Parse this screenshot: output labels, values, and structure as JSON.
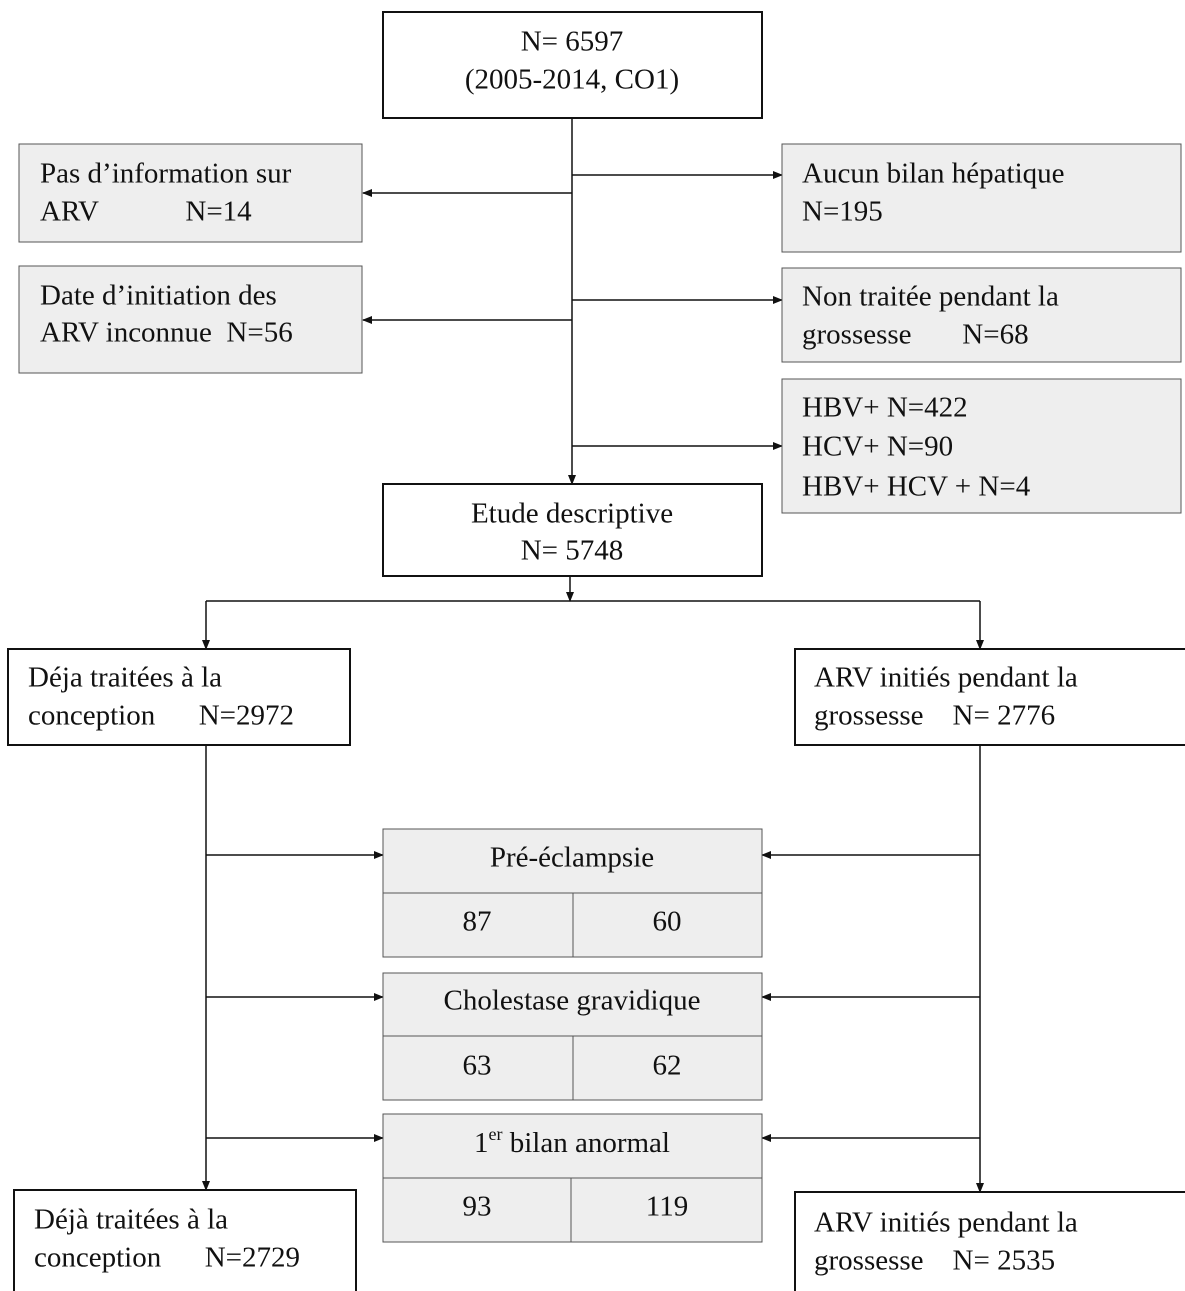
{
  "boxes": {
    "start": {
      "lines": [
        "N= 6597",
        "(2005-2014, CO1)"
      ]
    },
    "excl_left_1": {
      "lines": [
        "Pas d’information sur",
        "ARV            N=14"
      ]
    },
    "excl_left_2": {
      "lines": [
        "Date d’initiation des",
        "ARV inconnue  N=56"
      ]
    },
    "excl_right_1": {
      "lines": [
        "Aucun bilan hépatique",
        "N=195"
      ]
    },
    "excl_right_2": {
      "lines": [
        "Non traitée pendant la",
        "grossesse       N=68"
      ]
    },
    "excl_right_3": {
      "lines": [
        "HBV+ N=422",
        "HCV+ N=90",
        "HBV+ HCV + N=4"
      ]
    },
    "descriptive": {
      "lines": [
        "Etude descriptive",
        "N= 5748"
      ]
    },
    "treated": {
      "lines": [
        "Déja traitées à la",
        "conception      N=2972"
      ]
    },
    "initiated": {
      "lines": [
        "ARV initiés pendant la",
        "grossesse    N= 2776"
      ]
    },
    "treated_final": {
      "lines": [
        "Déjà traitées à la",
        "conception      N=2729"
      ]
    },
    "initiated_final": {
      "lines": [
        "ARV initiés pendant la",
        "grossesse    N= 2535"
      ]
    }
  },
  "tables": [
    {
      "header": [
        "Pré-éclampsie"
      ],
      "left": "87",
      "right": "60"
    },
    {
      "header": [
        "Cholestase gravidique"
      ],
      "left": "63",
      "right": "62"
    },
    {
      "header": [
        "1",
        "er",
        " bilan anormal"
      ],
      "left": "93",
      "right": "119"
    }
  ]
}
